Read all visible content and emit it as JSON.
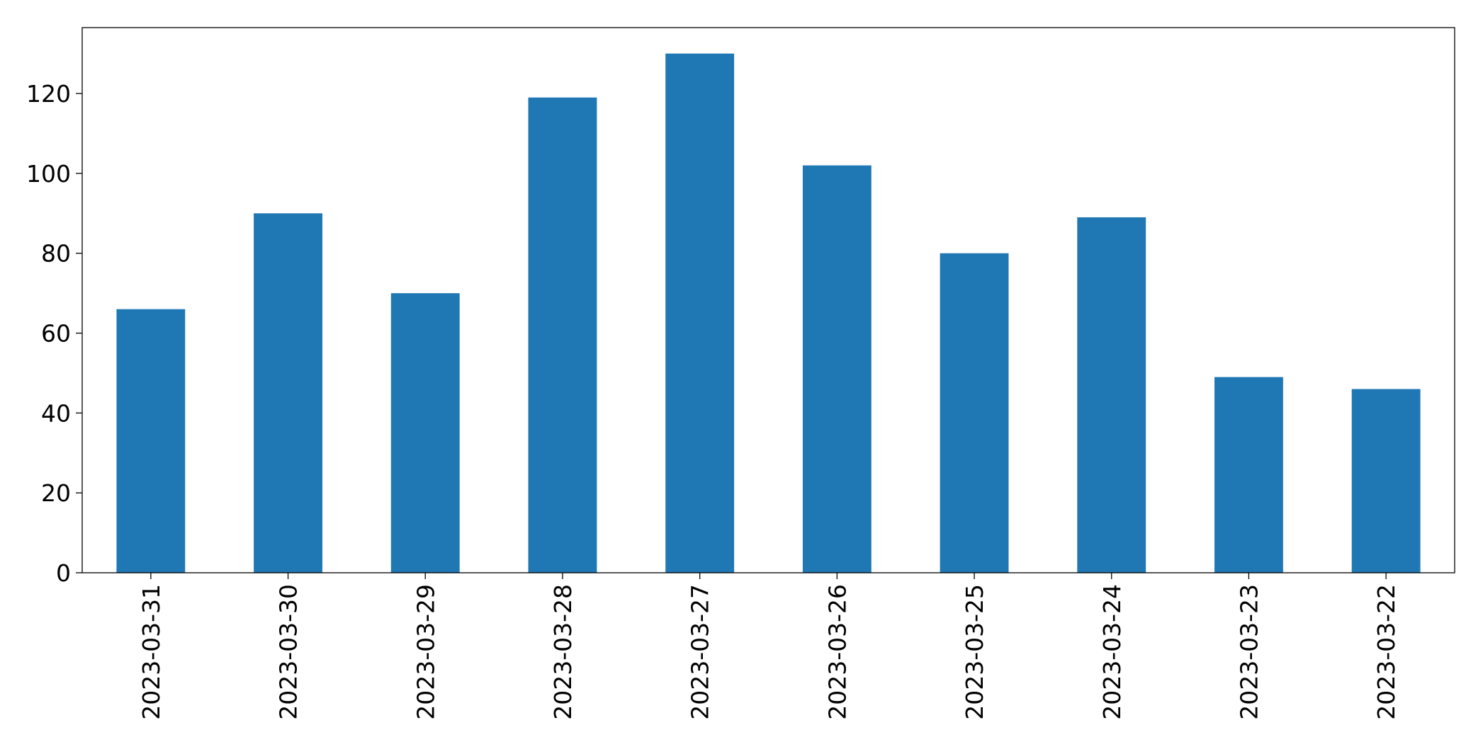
{
  "chart_data": {
    "type": "bar",
    "categories": [
      "2023-03-31",
      "2023-03-30",
      "2023-03-29",
      "2023-03-28",
      "2023-03-27",
      "2023-03-26",
      "2023-03-25",
      "2023-03-24",
      "2023-03-23",
      "2023-03-22"
    ],
    "values": [
      66,
      90,
      70,
      119,
      130,
      102,
      80,
      89,
      49,
      46
    ],
    "color": "#1f77b4",
    "ylim": [
      0,
      136.5
    ],
    "yticks": [
      0,
      20,
      40,
      60,
      80,
      100,
      120
    ],
    "grid": false
  }
}
